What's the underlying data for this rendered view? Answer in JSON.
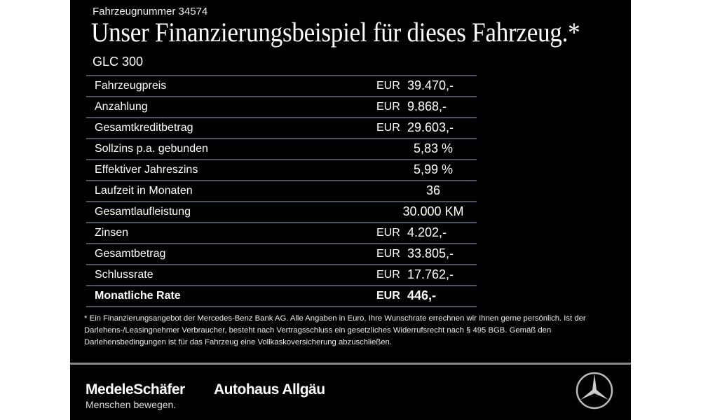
{
  "vehicle_number": "Fahrzeugnummer 34574",
  "title": "Unser Finanzierungsbeispiel für dieses Fahrzeug.*",
  "model": "GLC 300",
  "rows": [
    {
      "label": "Fahrzeugpreis",
      "currency": "EUR",
      "value": "39.470,-"
    },
    {
      "label": "Anzahlung",
      "currency": "EUR",
      "value": "9.868,-"
    },
    {
      "label": "Gesamtkreditbetrag",
      "currency": "EUR",
      "value": "29.603,-"
    },
    {
      "label": "Sollzins p.a. gebunden",
      "currency": "",
      "value": "5,83 %"
    },
    {
      "label": "Effektiver Jahreszins",
      "currency": "",
      "value": "5,99 %"
    },
    {
      "label": "Laufzeit in Monaten",
      "currency": "",
      "value": "36"
    },
    {
      "label": "Gesamtlaufleistung",
      "currency": "",
      "value": "30.000 KM"
    },
    {
      "label": "Zinsen",
      "currency": "EUR",
      "value": "4.202,-"
    },
    {
      "label": "Gesamtbetrag",
      "currency": "EUR",
      "value": "33.805,-"
    },
    {
      "label": "Schlussrate",
      "currency": "EUR",
      "value": "17.762,-"
    },
    {
      "label": "Monatliche Rate",
      "currency": "EUR",
      "value": "446,-"
    }
  ],
  "footnote": "* Ein Finanzierungsangebot der Mercedes-Benz Bank AG. Alle Angaben in Euro, Ihre Wunschrate errechnen wir Ihnen gerne persönlich. Ist der Darlehens-/Leasingnehmer Verbraucher, besteht nach Vertragsschluss ein gesetzliches Widerrufsrecht nach § 495 BGB. Gemäß den Darlehensbedingungen ist für das Fahrzeug eine Vollkaskoversicherung abzuschließen.",
  "footer": {
    "brand1": "MedeleSchäfer",
    "brand2": "Autohaus Allgäu",
    "slogan": "Menschen bewegen.",
    "logo_icon": "mercedes-star-icon"
  },
  "colors": {
    "background": "#000000",
    "row_line": "#4b5462",
    "text": "#ffffff"
  }
}
